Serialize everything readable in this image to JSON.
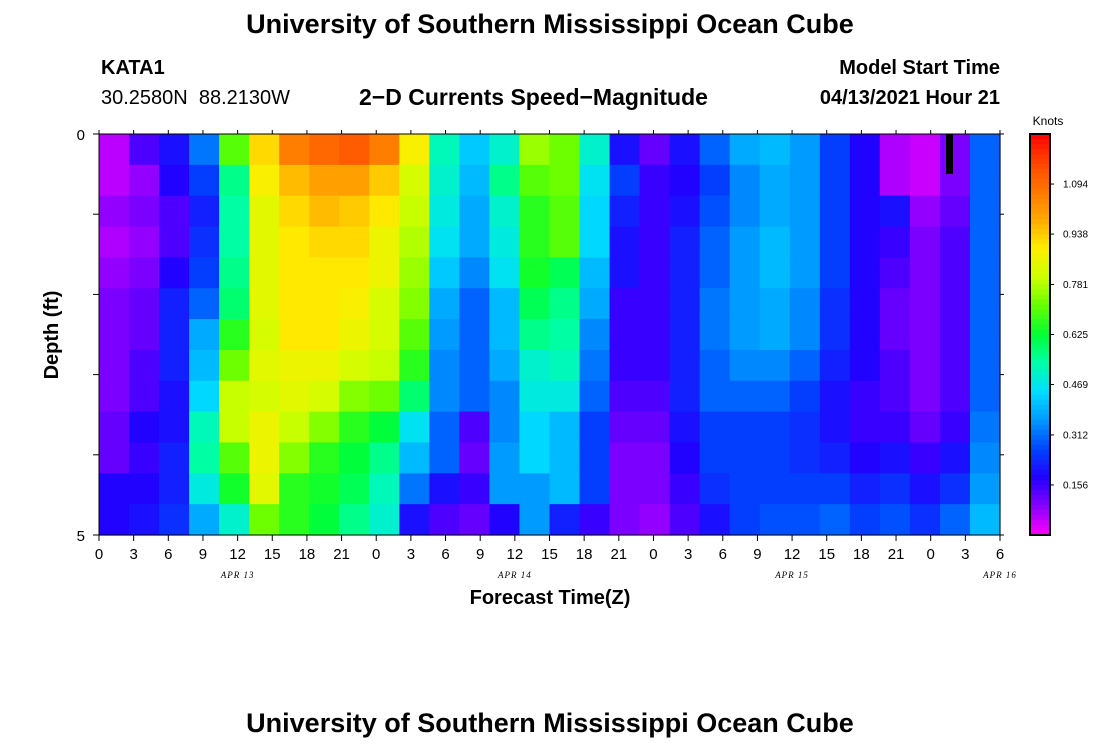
{
  "header": {
    "title": "University of Southern Mississippi Ocean Cube",
    "station_id": "KATA1",
    "coordinates": "30.2580N  88.2130W",
    "plot_title": "2−D Currents Speed−Magnitude",
    "model_start_label": "Model Start Time",
    "model_start_value": "04/13/2021 Hour 21"
  },
  "footer": {
    "title": "University of Southern Mississippi Ocean Cube"
  },
  "chart_data": {
    "type": "heatmap",
    "title": "2−D Currents Speed−Magnitude",
    "xlabel": "Forecast Time(Z)",
    "ylabel": "Depth (ft)",
    "y_ticks": [
      "0",
      "5"
    ],
    "ylim": [
      0,
      5
    ],
    "x_tick_labels": [
      "0",
      "3",
      "6",
      "9",
      "12",
      "15",
      "18",
      "21",
      "0",
      "3",
      "6",
      "9",
      "12",
      "15",
      "18",
      "21",
      "0",
      "3",
      "6",
      "9",
      "12",
      "15",
      "18",
      "21",
      "0",
      "3",
      "6"
    ],
    "date_labels": [
      "APR 13",
      "APR 14",
      "APR 15",
      "APR 16"
    ],
    "colorbar": {
      "unit": "Knots",
      "ticks": [
        "1.094",
        "0.938",
        "0.781",
        "0.625",
        "0.469",
        "0.312",
        "0.156"
      ],
      "range": [
        0,
        1.25
      ],
      "colors": [
        "#ff00ff",
        "#8800ff",
        "#2200ff",
        "#0044ff",
        "#0099ff",
        "#00ddff",
        "#00ffaa",
        "#00ff33",
        "#66ff00",
        "#ccff00",
        "#ffee00",
        "#ffaa00",
        "#ff7700",
        "#ff4400",
        "#ff0000"
      ]
    },
    "series": [
      {
        "values": [
          0.05,
          0.05,
          0.08,
          0.06,
          0.08,
          0.1,
          0.1,
          0.1,
          0.1,
          0.12,
          0.12,
          0.18,
          0.18
        ]
      },
      {
        "values": [
          0.14,
          0.08,
          0.1,
          0.08,
          0.1,
          0.12,
          0.12,
          0.14,
          0.14,
          0.18,
          0.16,
          0.18,
          0.2
        ]
      },
      {
        "values": [
          0.2,
          0.18,
          0.14,
          0.14,
          0.18,
          0.22,
          0.22,
          0.22,
          0.2,
          0.2,
          0.22,
          0.22,
          0.24
        ]
      },
      {
        "values": [
          0.32,
          0.26,
          0.22,
          0.24,
          0.26,
          0.3,
          0.38,
          0.4,
          0.44,
          0.52,
          0.54,
          0.48,
          0.38
        ]
      },
      {
        "values": [
          0.7,
          0.56,
          0.54,
          0.54,
          0.56,
          0.58,
          0.66,
          0.72,
          0.8,
          0.8,
          0.7,
          0.64,
          0.5
        ]
      },
      {
        "values": [
          0.92,
          0.88,
          0.84,
          0.84,
          0.84,
          0.84,
          0.82,
          0.84,
          0.82,
          0.86,
          0.86,
          0.84,
          0.72
        ]
      },
      {
        "values": [
          1.06,
          0.96,
          0.92,
          0.9,
          0.9,
          0.9,
          0.9,
          0.86,
          0.84,
          0.8,
          0.74,
          0.66,
          0.66
        ]
      },
      {
        "values": [
          1.1,
          1.0,
          0.96,
          0.92,
          0.9,
          0.9,
          0.9,
          0.86,
          0.82,
          0.74,
          0.66,
          0.64,
          0.62
        ]
      },
      {
        "values": [
          1.12,
          1.0,
          0.94,
          0.92,
          0.9,
          0.88,
          0.86,
          0.82,
          0.74,
          0.66,
          0.62,
          0.6,
          0.56
        ]
      },
      {
        "values": [
          1.06,
          0.94,
          0.9,
          0.86,
          0.86,
          0.82,
          0.82,
          0.8,
          0.72,
          0.62,
          0.56,
          0.52,
          0.5
        ]
      },
      {
        "values": [
          0.88,
          0.82,
          0.8,
          0.78,
          0.76,
          0.74,
          0.7,
          0.66,
          0.58,
          0.46,
          0.4,
          0.32,
          0.2
        ]
      },
      {
        "values": [
          0.52,
          0.5,
          0.48,
          0.46,
          0.42,
          0.38,
          0.36,
          0.34,
          0.34,
          0.3,
          0.3,
          0.2,
          0.14
        ]
      },
      {
        "values": [
          0.42,
          0.4,
          0.38,
          0.38,
          0.34,
          0.3,
          0.3,
          0.3,
          0.3,
          0.14,
          0.12,
          0.16,
          0.12
        ]
      },
      {
        "values": [
          0.5,
          0.56,
          0.5,
          0.48,
          0.46,
          0.4,
          0.4,
          0.38,
          0.34,
          0.34,
          0.36,
          0.36,
          0.18
        ]
      },
      {
        "values": [
          0.76,
          0.7,
          0.66,
          0.66,
          0.64,
          0.6,
          0.56,
          0.5,
          0.48,
          0.44,
          0.44,
          0.36,
          0.36
        ]
      },
      {
        "values": [
          0.72,
          0.72,
          0.7,
          0.7,
          0.6,
          0.56,
          0.54,
          0.52,
          0.48,
          0.4,
          0.4,
          0.4,
          0.22
        ]
      },
      {
        "values": [
          0.5,
          0.46,
          0.44,
          0.44,
          0.4,
          0.38,
          0.34,
          0.32,
          0.3,
          0.26,
          0.26,
          0.26,
          0.16
        ]
      },
      {
        "values": [
          0.2,
          0.26,
          0.22,
          0.2,
          0.2,
          0.16,
          0.16,
          0.16,
          0.14,
          0.12,
          0.1,
          0.1,
          0.1
        ]
      },
      {
        "values": [
          0.12,
          0.16,
          0.16,
          0.16,
          0.16,
          0.16,
          0.16,
          0.16,
          0.14,
          0.12,
          0.1,
          0.1,
          0.08
        ]
      },
      {
        "values": [
          0.2,
          0.18,
          0.2,
          0.22,
          0.22,
          0.22,
          0.22,
          0.22,
          0.22,
          0.2,
          0.18,
          0.16,
          0.14
        ]
      },
      {
        "values": [
          0.3,
          0.26,
          0.28,
          0.3,
          0.3,
          0.32,
          0.32,
          0.3,
          0.3,
          0.26,
          0.26,
          0.24,
          0.2
        ]
      },
      {
        "values": [
          0.38,
          0.34,
          0.34,
          0.36,
          0.36,
          0.36,
          0.36,
          0.34,
          0.3,
          0.26,
          0.26,
          0.26,
          0.26
        ]
      },
      {
        "values": [
          0.4,
          0.38,
          0.38,
          0.4,
          0.4,
          0.38,
          0.38,
          0.34,
          0.3,
          0.26,
          0.26,
          0.26,
          0.28
        ]
      },
      {
        "values": [
          0.36,
          0.36,
          0.36,
          0.36,
          0.36,
          0.34,
          0.34,
          0.3,
          0.26,
          0.24,
          0.24,
          0.26,
          0.28
        ]
      },
      {
        "values": [
          0.26,
          0.26,
          0.26,
          0.26,
          0.26,
          0.24,
          0.24,
          0.22,
          0.2,
          0.2,
          0.22,
          0.26,
          0.3
        ]
      },
      {
        "values": [
          0.18,
          0.18,
          0.18,
          0.18,
          0.18,
          0.18,
          0.18,
          0.18,
          0.16,
          0.16,
          0.18,
          0.22,
          0.26
        ]
      },
      {
        "values": [
          0.06,
          0.06,
          0.2,
          0.16,
          0.14,
          0.12,
          0.12,
          0.14,
          0.14,
          0.16,
          0.2,
          0.24,
          0.28
        ]
      },
      {
        "values": [
          0.04,
          0.04,
          0.08,
          0.1,
          0.1,
          0.1,
          0.1,
          0.1,
          0.1,
          0.12,
          0.16,
          0.2,
          0.24
        ]
      },
      {
        "values": [
          0.1,
          0.1,
          0.12,
          0.14,
          0.14,
          0.14,
          0.14,
          0.14,
          0.14,
          0.16,
          0.2,
          0.24,
          0.3
        ]
      },
      {
        "values": [
          0.3,
          0.3,
          0.3,
          0.3,
          0.3,
          0.3,
          0.3,
          0.3,
          0.3,
          0.32,
          0.34,
          0.36,
          0.4
        ]
      }
    ]
  }
}
